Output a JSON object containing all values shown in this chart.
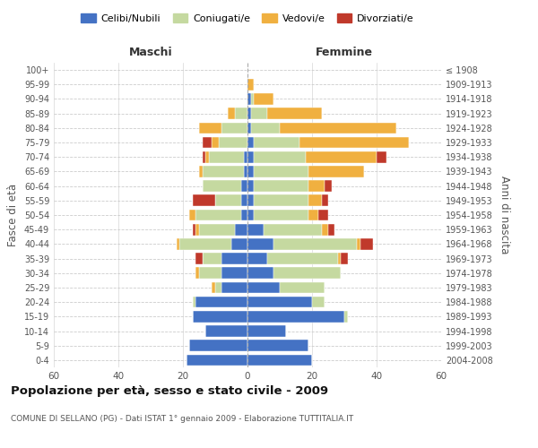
{
  "age_groups": [
    "0-4",
    "5-9",
    "10-14",
    "15-19",
    "20-24",
    "25-29",
    "30-34",
    "35-39",
    "40-44",
    "45-49",
    "50-54",
    "55-59",
    "60-64",
    "65-69",
    "70-74",
    "75-79",
    "80-84",
    "85-89",
    "90-94",
    "95-99",
    "100+"
  ],
  "birth_years": [
    "2004-2008",
    "1999-2003",
    "1994-1998",
    "1989-1993",
    "1984-1988",
    "1979-1983",
    "1974-1978",
    "1969-1973",
    "1964-1968",
    "1959-1963",
    "1954-1958",
    "1949-1953",
    "1944-1948",
    "1939-1943",
    "1934-1938",
    "1929-1933",
    "1924-1928",
    "1919-1923",
    "1914-1918",
    "1909-1913",
    "≤ 1908"
  ],
  "male": {
    "celibi": [
      19,
      18,
      13,
      17,
      16,
      8,
      8,
      8,
      5,
      4,
      2,
      2,
      2,
      1,
      1,
      0,
      0,
      0,
      0,
      0,
      0
    ],
    "coniugati": [
      0,
      0,
      0,
      0,
      1,
      2,
      7,
      6,
      16,
      11,
      14,
      8,
      12,
      13,
      11,
      9,
      8,
      4,
      0,
      0,
      0
    ],
    "vedovi": [
      0,
      0,
      0,
      0,
      0,
      1,
      1,
      0,
      1,
      1,
      2,
      0,
      0,
      1,
      1,
      2,
      7,
      2,
      0,
      0,
      0
    ],
    "divorziati": [
      0,
      0,
      0,
      0,
      0,
      0,
      0,
      2,
      0,
      1,
      0,
      7,
      0,
      0,
      1,
      3,
      0,
      0,
      0,
      0,
      0
    ]
  },
  "female": {
    "nubili": [
      20,
      19,
      12,
      30,
      20,
      10,
      8,
      6,
      8,
      5,
      2,
      2,
      2,
      2,
      2,
      2,
      1,
      1,
      1,
      0,
      0
    ],
    "coniugate": [
      0,
      0,
      0,
      1,
      4,
      14,
      21,
      22,
      26,
      18,
      17,
      17,
      17,
      17,
      16,
      14,
      9,
      5,
      1,
      0,
      0
    ],
    "vedove": [
      0,
      0,
      0,
      0,
      0,
      0,
      0,
      1,
      1,
      2,
      3,
      4,
      5,
      17,
      22,
      34,
      36,
      17,
      6,
      2,
      0
    ],
    "divorziate": [
      0,
      0,
      0,
      0,
      0,
      0,
      0,
      2,
      4,
      2,
      3,
      2,
      2,
      0,
      3,
      0,
      0,
      0,
      0,
      0,
      0
    ]
  },
  "colors": {
    "celibi": "#4472c4",
    "coniugati": "#c5d9a0",
    "vedovi": "#f0b040",
    "divorziati": "#c0392b"
  },
  "xlim": 60,
  "title": "Popolazione per età, sesso e stato civile - 2009",
  "subtitle": "COMUNE DI SELLANO (PG) - Dati ISTAT 1° gennaio 2009 - Elaborazione TUTTITALIA.IT",
  "xlabel_left": "Maschi",
  "xlabel_right": "Femmine",
  "ylabel_left": "Fasce di età",
  "ylabel_right": "Anni di nascita",
  "legend_labels": [
    "Celibi/Nubili",
    "Coniugati/e",
    "Vedovi/e",
    "Divorziati/e"
  ],
  "bg_color": "#ffffff",
  "grid_color": "#cccccc"
}
